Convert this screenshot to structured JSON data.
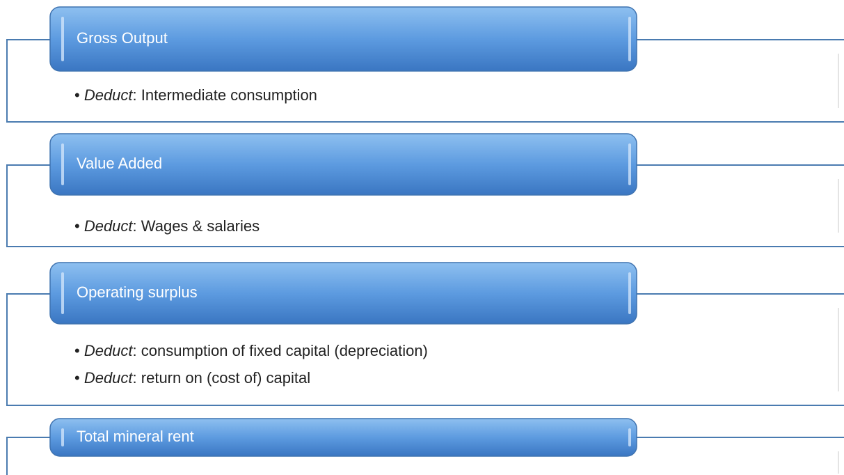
{
  "blocks": [
    {
      "title": "Gross Output",
      "items": [
        {
          "prefix": "Deduct",
          "text": ": Intermediate consumption"
        }
      ]
    },
    {
      "title": "Value Added",
      "items": [
        {
          "prefix": "Deduct",
          "text": ": Wages & salaries"
        }
      ]
    },
    {
      "title": "Operating surplus",
      "items": [
        {
          "prefix": "Deduct",
          "text": ": consumption of fixed capital (depreciation)"
        },
        {
          "prefix": "Deduct",
          "text": ": return on (cost of) capital"
        }
      ]
    },
    {
      "title": "Total mineral rent",
      "items": []
    }
  ]
}
